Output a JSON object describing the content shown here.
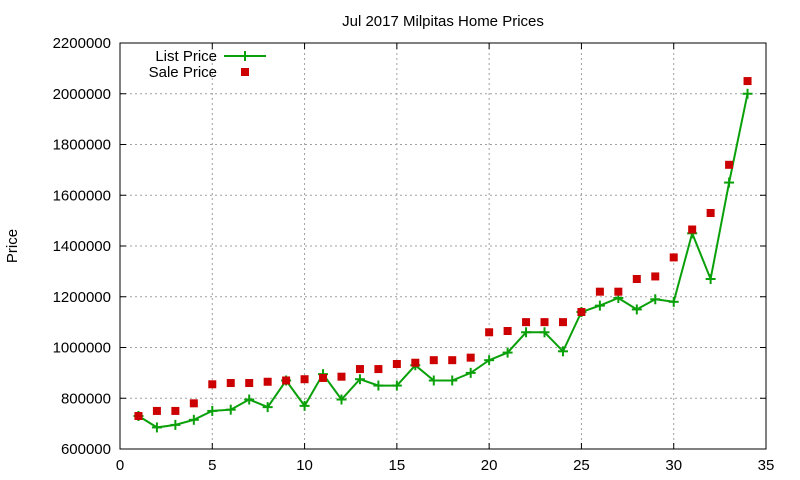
{
  "chart_data": {
    "type": "line",
    "title": "Jul 2017 Milpitas Home Prices",
    "xlabel": "",
    "ylabel": "Price",
    "xlim": [
      0,
      35
    ],
    "ylim": [
      600000,
      2200000
    ],
    "xticks": [
      0,
      5,
      10,
      15,
      20,
      25,
      30,
      35
    ],
    "yticks": [
      600000,
      800000,
      1000000,
      1200000,
      1400000,
      1600000,
      1800000,
      2000000,
      2200000
    ],
    "grid": true,
    "legend_position": "top-left",
    "series": [
      {
        "name": "List Price",
        "style": "linespoints",
        "marker": "plus",
        "color": "#0aa00a",
        "x": [
          1,
          2,
          3,
          4,
          5,
          6,
          7,
          8,
          9,
          10,
          11,
          12,
          13,
          14,
          15,
          16,
          17,
          18,
          19,
          20,
          21,
          22,
          23,
          24,
          25,
          26,
          27,
          28,
          29,
          30,
          31,
          32,
          33,
          34
        ],
        "y": [
          730000,
          685000,
          695000,
          715000,
          750000,
          755000,
          795000,
          765000,
          870000,
          770000,
          895000,
          795000,
          875000,
          850000,
          850000,
          930000,
          870000,
          870000,
          900000,
          950000,
          980000,
          1060000,
          1060000,
          985000,
          1140000,
          1165000,
          1195000,
          1150000,
          1190000,
          1180000,
          1450000,
          1270000,
          1650000,
          2000000
        ]
      },
      {
        "name": "Sale Price",
        "style": "points",
        "marker": "square",
        "color": "#cc0000",
        "x": [
          1,
          2,
          3,
          4,
          5,
          6,
          7,
          8,
          9,
          10,
          11,
          12,
          13,
          14,
          15,
          16,
          17,
          18,
          19,
          20,
          21,
          22,
          23,
          24,
          25,
          26,
          27,
          28,
          29,
          30,
          31,
          32,
          33,
          34
        ],
        "y": [
          730000,
          750000,
          750000,
          780000,
          855000,
          860000,
          860000,
          865000,
          870000,
          875000,
          880000,
          885000,
          915000,
          915000,
          935000,
          940000,
          950000,
          950000,
          960000,
          1060000,
          1065000,
          1100000,
          1100000,
          1100000,
          1140000,
          1220000,
          1220000,
          1270000,
          1280000,
          1355000,
          1465000,
          1530000,
          1720000,
          2050000
        ]
      }
    ]
  }
}
